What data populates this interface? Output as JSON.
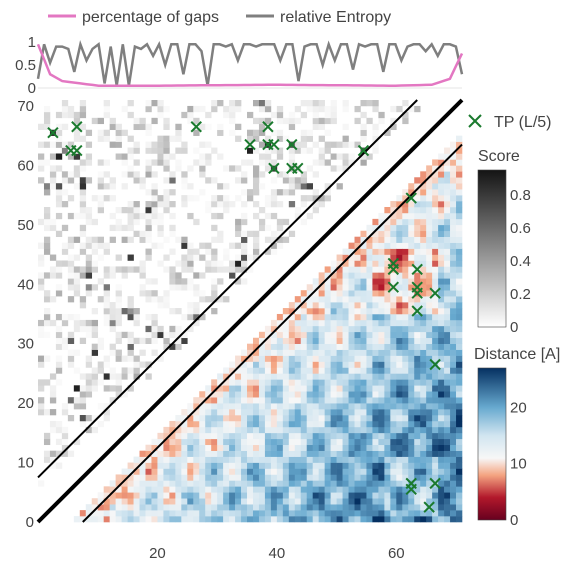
{
  "chart_data": {
    "type": "heatmap",
    "top_panel": {
      "type": "line",
      "legend": [
        "percentage of gaps",
        "relative Entropy"
      ],
      "colors": {
        "percentage of gaps": "#e377c2",
        "relative Entropy": "#7f7f7f"
      },
      "ylim": [
        0,
        1
      ],
      "yticks": [
        "1",
        "0.5",
        "0"
      ],
      "gaps_shape": [
        [
          1,
          0.95
        ],
        [
          3,
          0.3
        ],
        [
          5,
          0.15
        ],
        [
          8,
          0.1
        ],
        [
          11,
          0.05
        ],
        [
          20,
          0.05
        ],
        [
          30,
          0.06
        ],
        [
          40,
          0.07
        ],
        [
          50,
          0.06
        ],
        [
          60,
          0.05
        ],
        [
          66,
          0.07
        ],
        [
          69,
          0.2
        ],
        [
          71,
          0.75
        ]
      ],
      "entropy_values": [
        0.2,
        0.95,
        0.55,
        0.9,
        0.9,
        0.85,
        0.35,
        0.95,
        0.6,
        0.85,
        0.95,
        0.1,
        0.9,
        0.05,
        0.95,
        0.05,
        0.9,
        0.85,
        0.95,
        0.7,
        0.95,
        0.5,
        0.95,
        0.95,
        0.3,
        0.95,
        0.95,
        0.8,
        0.05,
        0.95,
        0.95,
        0.9,
        0.95,
        0.6,
        0.95,
        0.95,
        0.9,
        0.95,
        0.95,
        0.95,
        0.6,
        0.95,
        0.95,
        0.15,
        0.9,
        0.95,
        0.95,
        0.5,
        0.95,
        0.6,
        0.95,
        0.95,
        0.4,
        0.95,
        0.9,
        0.95,
        0.95,
        0.35,
        0.95,
        0.95,
        0.6,
        0.9,
        0.95,
        0.95,
        0.8,
        0.95,
        0.7,
        0.95,
        0.95,
        0.9,
        0.3
      ]
    },
    "contact_map": {
      "n": 71,
      "xticks": [
        "20",
        "40",
        "60"
      ],
      "yticks": [
        "0",
        "10",
        "20",
        "30",
        "40",
        "50",
        "60",
        "70"
      ],
      "tp_legend": "TP (L/5)",
      "tp_points": [
        [
          3,
          66
        ],
        [
          7,
          67
        ],
        [
          7,
          63
        ],
        [
          6,
          63
        ],
        [
          27,
          67
        ],
        [
          39,
          67
        ],
        [
          36,
          64
        ],
        [
          39,
          64
        ],
        [
          40,
          64
        ],
        [
          43,
          64
        ],
        [
          40,
          60
        ],
        [
          43,
          60
        ],
        [
          44,
          60
        ],
        [
          55,
          63
        ],
        [
          63,
          55
        ],
        [
          60,
          44
        ],
        [
          60,
          43
        ],
        [
          64,
          43
        ],
        [
          60,
          40
        ],
        [
          64,
          40
        ],
        [
          64,
          39
        ],
        [
          67,
          39
        ],
        [
          64,
          36
        ],
        [
          67,
          27
        ],
        [
          63,
          7
        ],
        [
          63,
          6
        ],
        [
          67,
          7
        ],
        [
          66,
          3
        ]
      ],
      "score_colorbar": {
        "title": "Score",
        "ticks": [
          "0.8",
          "0.6",
          "0.4",
          "0.2",
          "0"
        ],
        "range": [
          0,
          0.95
        ]
      },
      "distance_colorbar": {
        "title": "Distance [A]",
        "ticks": [
          "20",
          "10",
          "0"
        ],
        "range": [
          0,
          27
        ]
      }
    }
  }
}
